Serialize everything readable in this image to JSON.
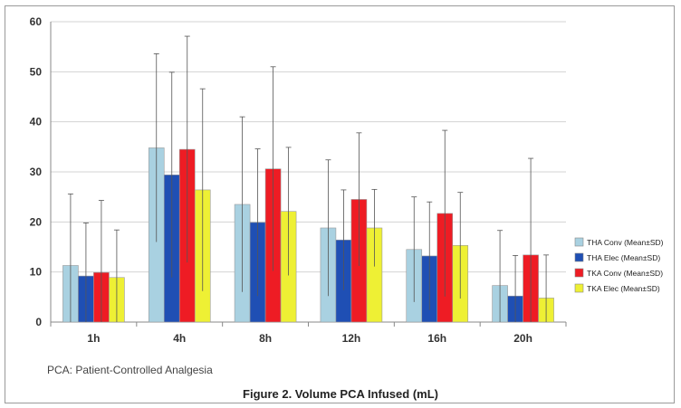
{
  "chart_data": {
    "type": "bar",
    "categories": [
      "1h",
      "4h",
      "8h",
      "12h",
      "16h",
      "20h"
    ],
    "ylim": [
      0,
      60
    ],
    "yticks": [
      0,
      10,
      20,
      30,
      40,
      50,
      60
    ],
    "grid": true,
    "legend_position": "right",
    "series": [
      {
        "name": "THA Conv (Mean±SD)",
        "color": "#a9d1e1",
        "values": [
          11.3,
          34.8,
          23.5,
          18.8,
          14.5,
          7.3
        ],
        "errors": [
          14.3,
          18.8,
          17.5,
          13.6,
          10.5,
          11.0
        ]
      },
      {
        "name": "THA Elec (Mean±SD)",
        "color": "#1f4fb4",
        "values": [
          9.2,
          29.4,
          19.9,
          16.4,
          13.2,
          5.2
        ],
        "errors": [
          10.6,
          20.5,
          14.7,
          10.0,
          10.8,
          8.1
        ]
      },
      {
        "name": "TKA Conv (Mean±SD)",
        "color": "#ee1c24",
        "values": [
          9.9,
          34.5,
          30.6,
          24.5,
          21.7,
          13.4
        ],
        "errors": [
          14.4,
          22.6,
          20.4,
          13.3,
          16.6,
          19.3
        ]
      },
      {
        "name": "TKA Elec (Mean±SD)",
        "color": "#eef034",
        "values": [
          8.9,
          26.4,
          22.1,
          18.8,
          15.3,
          4.8
        ],
        "errors": [
          9.5,
          20.2,
          12.8,
          7.7,
          10.6,
          8.6
        ]
      }
    ]
  },
  "footnote": "PCA: Patient-Controlled  Analgesia",
  "caption": "Figure 2. Volume PCA Infused (mL)"
}
